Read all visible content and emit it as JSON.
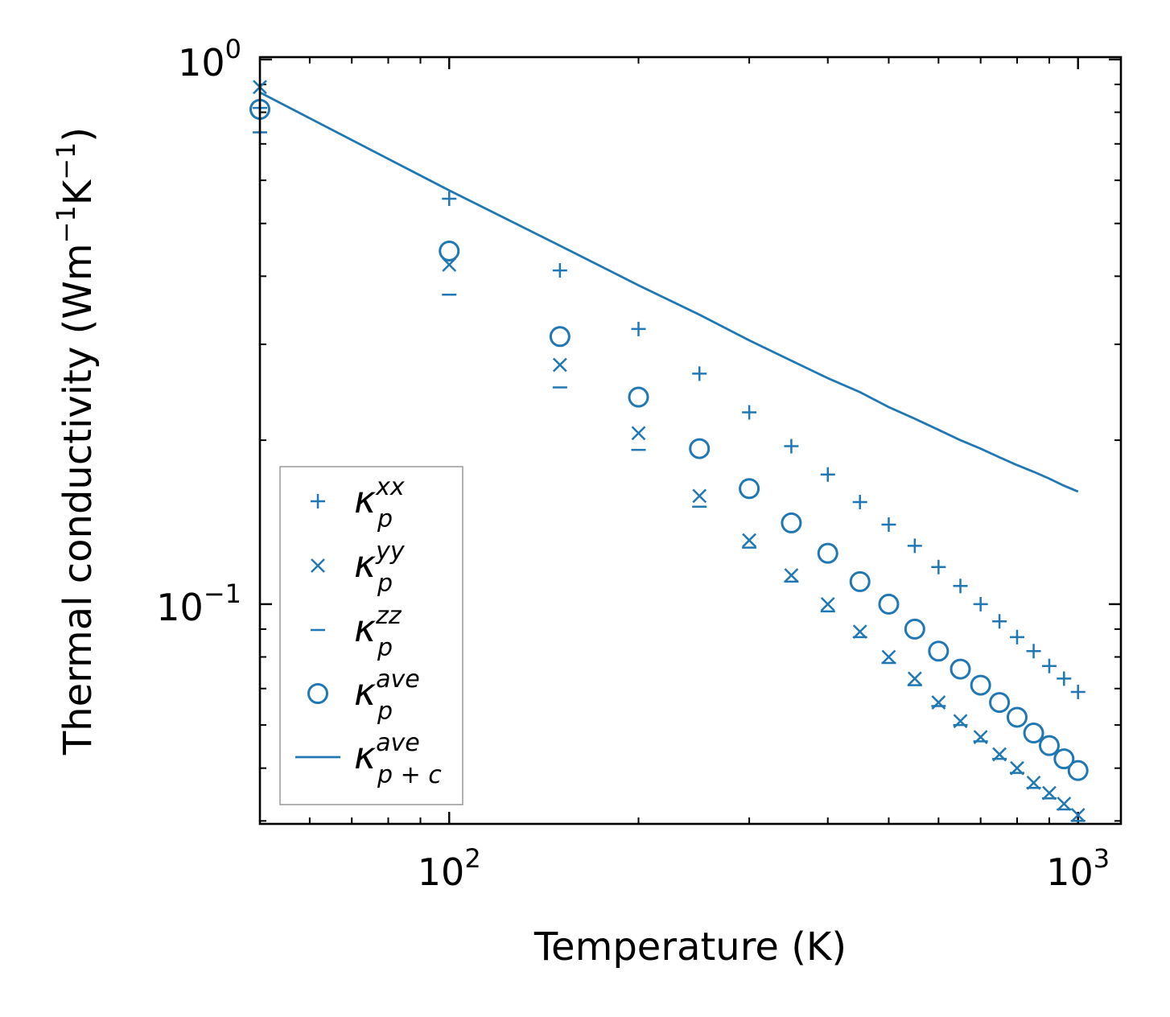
{
  "chart_data": {
    "type": "scatter",
    "xscale": "log",
    "yscale": "log",
    "xlabel": "Temperature (K)",
    "ylabel": {
      "base": "Thermal conductivity (Wm",
      "sup1": "−1",
      "mid": "K",
      "sup2": "−1",
      "end": ")"
    },
    "xlim": [
      50,
      1170
    ],
    "ylim": [
      0.0395,
      1.01
    ],
    "x_ticks": [
      {
        "value": 100,
        "base": "10",
        "exp": "2"
      },
      {
        "value": 1000,
        "base": "10",
        "exp": "3"
      }
    ],
    "y_ticks": [
      {
        "value": 0.1,
        "base": "10",
        "exp": "−1"
      },
      {
        "value": 1,
        "base": "10",
        "exp": "0"
      }
    ],
    "color": "#1f77b4",
    "x": [
      50,
      100,
      150,
      200,
      250,
      300,
      350,
      400,
      450,
      500,
      550,
      600,
      650,
      700,
      750,
      800,
      850,
      900,
      950,
      1000
    ],
    "series": [
      {
        "name": "kxx",
        "marker": "plus",
        "legend": {
          "sym": "κ",
          "sub": "p",
          "sup": "xx"
        },
        "values": [
          0.815,
          0.555,
          0.41,
          0.32,
          0.265,
          0.225,
          0.195,
          0.173,
          0.154,
          0.14,
          0.128,
          0.117,
          0.108,
          0.1,
          0.093,
          0.087,
          0.082,
          0.077,
          0.073,
          0.069
        ]
      },
      {
        "name": "kyy",
        "marker": "x",
        "legend": {
          "sym": "κ",
          "sub": "p",
          "sup": "yy"
        },
        "values": [
          0.89,
          0.42,
          0.275,
          0.206,
          0.158,
          0.131,
          0.113,
          0.1,
          0.089,
          0.08,
          0.073,
          0.066,
          0.061,
          0.057,
          0.053,
          0.05,
          0.047,
          0.045,
          0.043,
          0.041
        ]
      },
      {
        "name": "kzz",
        "marker": "dash",
        "legend": {
          "sym": "κ",
          "sub": "p",
          "sup": "zz"
        },
        "values": [
          0.735,
          0.37,
          0.25,
          0.192,
          0.151,
          0.127,
          0.11,
          0.097,
          0.087,
          0.078,
          0.071,
          0.065,
          0.06,
          0.056,
          0.052,
          0.049,
          0.046,
          0.044,
          0.042,
          0.04
        ]
      },
      {
        "name": "kave",
        "marker": "circle",
        "legend": {
          "sym": "κ",
          "sub": "p",
          "sup": "ave"
        },
        "values": [
          0.81,
          0.445,
          0.31,
          0.24,
          0.193,
          0.163,
          0.141,
          0.124,
          0.11,
          0.1,
          0.09,
          0.082,
          0.076,
          0.071,
          0.066,
          0.062,
          0.058,
          0.055,
          0.052,
          0.0495
        ]
      },
      {
        "name": "kpc",
        "marker": "line",
        "legend": {
          "sym": "κ",
          "sub": "p + c",
          "sup": "ave"
        },
        "values": [
          0.87,
          0.575,
          0.455,
          0.385,
          0.34,
          0.305,
          0.28,
          0.26,
          0.245,
          0.23,
          0.219,
          0.209,
          0.2,
          0.193,
          0.186,
          0.18,
          0.175,
          0.17,
          0.165,
          0.161
        ]
      }
    ]
  }
}
